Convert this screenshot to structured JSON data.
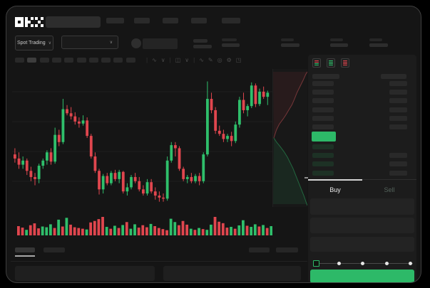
{
  "header": {
    "logo_text": "OKX"
  },
  "subheader": {
    "market_type_label": "Spot Trading",
    "market_type_chevron": "∨",
    "pair_selector_chevron": "∨"
  },
  "toolbar": {
    "timeframe_button_count": 10,
    "active_timeframe_index": 1,
    "icons": [
      {
        "name": "divider",
        "glyph": "|"
      },
      {
        "name": "indicators-icon",
        "glyph": "∿"
      },
      {
        "name": "chevron-down-icon",
        "glyph": "∨"
      },
      {
        "name": "divider",
        "glyph": "|"
      },
      {
        "name": "candle-style-icon",
        "glyph": "◫"
      },
      {
        "name": "chevron-down-icon",
        "glyph": "∨"
      },
      {
        "name": "divider",
        "glyph": "|"
      },
      {
        "name": "line-tool-icon",
        "glyph": "∿"
      },
      {
        "name": "draw-tool-icon",
        "glyph": "✎"
      },
      {
        "name": "screenshot-icon",
        "glyph": "◎"
      },
      {
        "name": "settings-icon",
        "glyph": "⚙"
      },
      {
        "name": "fullscreen-icon",
        "glyph": "◳"
      }
    ]
  },
  "orderbook": {
    "view_icons": [
      {
        "name": "orderbook-combined-icon",
        "rows": [
          "down",
          "down",
          "up",
          "up"
        ]
      },
      {
        "name": "orderbook-bids-icon",
        "rows": [
          "up",
          "up",
          "up",
          "up"
        ]
      },
      {
        "name": "orderbook-asks-icon",
        "rows": [
          "down",
          "down",
          "down",
          "down"
        ]
      }
    ],
    "ask_row_count": 6,
    "bid_row_count": 4
  },
  "trade_panel": {
    "buy_tab_label": "Buy",
    "sell_tab_label": "Sell",
    "input_count": 3,
    "slider_stop_count": 5,
    "active_slider_stop": 0
  },
  "colors": {
    "up": "#2fbf6b",
    "down": "#e0464e",
    "accent_green": "#2db968",
    "window_bg": "#151515",
    "panel_bg": "#1c1c1c",
    "skeleton": "#2a2a2a",
    "grid": "#1f1f1f",
    "bid_row": "#1d3125",
    "depth_ask_fill": "rgba(224,70,78,0.08)",
    "depth_ask_line": "rgba(224,90,96,0.45)",
    "depth_bid_fill": "rgba(47,191,107,0.10)",
    "depth_bid_line": "rgba(47,191,107,0.45)"
  },
  "chart_data": {
    "type": "candlestick",
    "title": "",
    "x_axis_labels_visible": false,
    "y_axis_labels_visible": false,
    "grid": true,
    "price_range": [
      55,
      185
    ],
    "candles": [
      [
        104,
        110,
        96,
        100
      ],
      [
        100,
        106,
        90,
        94
      ],
      [
        94,
        102,
        90,
        98
      ],
      [
        98,
        100,
        84,
        88
      ],
      [
        88,
        92,
        78,
        82
      ],
      [
        82,
        86,
        74,
        80
      ],
      [
        80,
        95,
        76,
        93
      ],
      [
        93,
        100,
        90,
        98
      ],
      [
        98,
        108,
        94,
        106
      ],
      [
        106,
        110,
        94,
        97
      ],
      [
        97,
        130,
        95,
        123
      ],
      [
        123,
        128,
        112,
        116
      ],
      [
        116,
        158,
        114,
        148
      ],
      [
        148,
        152,
        142,
        144
      ],
      [
        144,
        150,
        138,
        141
      ],
      [
        141,
        145,
        133,
        136
      ],
      [
        136,
        140,
        130,
        134
      ],
      [
        134,
        142,
        132,
        137
      ],
      [
        137,
        140,
        120,
        122
      ],
      [
        122,
        124,
        100,
        102
      ],
      [
        102,
        106,
        86,
        88
      ],
      [
        88,
        90,
        65,
        70
      ],
      [
        70,
        85,
        66,
        83
      ],
      [
        83,
        86,
        74,
        76
      ],
      [
        76,
        88,
        74,
        86
      ],
      [
        86,
        89,
        78,
        80
      ],
      [
        80,
        89,
        76,
        87
      ],
      [
        87,
        88,
        66,
        68
      ],
      [
        68,
        76,
        64,
        72
      ],
      [
        72,
        84,
        70,
        82
      ],
      [
        82,
        86,
        76,
        78
      ],
      [
        78,
        82,
        68,
        70
      ],
      [
        70,
        74,
        64,
        66
      ],
      [
        66,
        80,
        64,
        77
      ],
      [
        77,
        80,
        66,
        68
      ],
      [
        68,
        72,
        60,
        64
      ],
      [
        64,
        68,
        58,
        62
      ],
      [
        62,
        66,
        58,
        61
      ],
      [
        61,
        102,
        59,
        98
      ],
      [
        98,
        116,
        96,
        113
      ],
      [
        113,
        116,
        102,
        110
      ],
      [
        110,
        112,
        88,
        90
      ],
      [
        90,
        92,
        78,
        80
      ],
      [
        80,
        84,
        76,
        82
      ],
      [
        82,
        86,
        76,
        78
      ],
      [
        78,
        85,
        76,
        83
      ],
      [
        83,
        86,
        74,
        78
      ],
      [
        78,
        106,
        76,
        104
      ],
      [
        104,
        175,
        102,
        158
      ],
      [
        158,
        164,
        144,
        147
      ],
      [
        147,
        150,
        124,
        127
      ],
      [
        127,
        132,
        122,
        124
      ],
      [
        124,
        128,
        116,
        119
      ],
      [
        119,
        124,
        116,
        122
      ],
      [
        122,
        126,
        112,
        117
      ],
      [
        117,
        136,
        115,
        133
      ],
      [
        133,
        160,
        130,
        157
      ],
      [
        157,
        164,
        144,
        147
      ],
      [
        147,
        153,
        141,
        151
      ],
      [
        151,
        174,
        149,
        171
      ],
      [
        171,
        173,
        150,
        153
      ],
      [
        153,
        168,
        151,
        165
      ],
      [
        165,
        170,
        158,
        160
      ],
      [
        160,
        166,
        152,
        164
      ]
    ],
    "volumes": [
      50,
      42,
      30,
      55,
      65,
      38,
      48,
      44,
      60,
      40,
      85,
      48,
      95,
      58,
      44,
      40,
      36,
      32,
      70,
      78,
      88,
      100,
      46,
      36,
      52,
      40,
      56,
      72,
      36,
      60,
      42,
      55,
      44,
      62,
      50,
      40,
      34,
      28,
      90,
      72,
      55,
      78,
      58,
      36,
      30,
      40,
      34,
      30,
      58,
      100,
      74,
      66,
      42,
      46,
      36,
      54,
      82,
      52,
      46,
      60,
      48,
      56,
      40,
      50
    ],
    "depth": {
      "orientation": "vertical",
      "asks": [
        [
          0.02,
          0.5
        ],
        [
          0.06,
          0.47
        ],
        [
          0.1,
          0.44
        ],
        [
          0.18,
          0.4
        ],
        [
          0.3,
          0.36
        ],
        [
          0.38,
          0.33
        ],
        [
          0.45,
          0.3
        ],
        [
          0.55,
          0.26
        ],
        [
          0.62,
          0.22
        ],
        [
          0.7,
          0.17
        ],
        [
          0.8,
          0.12
        ],
        [
          0.88,
          0.08
        ],
        [
          0.95,
          0.04
        ],
        [
          1.0,
          0.02
        ]
      ],
      "bids": [
        [
          0.02,
          0.5
        ],
        [
          0.1,
          0.53
        ],
        [
          0.2,
          0.56
        ],
        [
          0.32,
          0.6
        ],
        [
          0.42,
          0.64
        ],
        [
          0.5,
          0.68
        ],
        [
          0.58,
          0.72
        ],
        [
          0.66,
          0.77
        ],
        [
          0.74,
          0.82
        ],
        [
          0.82,
          0.87
        ],
        [
          0.9,
          0.92
        ],
        [
          0.97,
          0.97
        ],
        [
          1.0,
          0.99
        ]
      ]
    }
  }
}
